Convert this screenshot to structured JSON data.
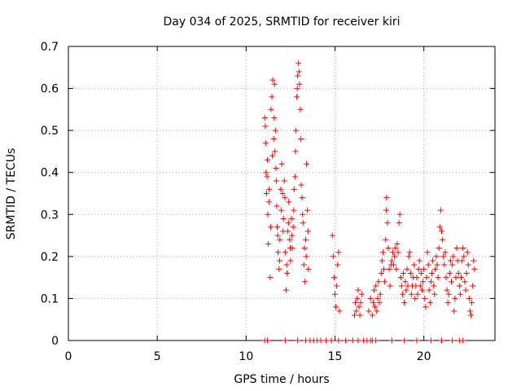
{
  "chart_data": {
    "type": "scatter",
    "title": "Day 034 of 2025, SRMTID for receiver kiri",
    "xlabel": "GPS time / hours",
    "ylabel": "SRMTID / TECUs",
    "xlim": [
      0,
      24
    ],
    "ylim": [
      0,
      0.7
    ],
    "xticks": [
      0,
      5,
      10,
      15,
      20
    ],
    "yticks": [
      0,
      0.1,
      0.2,
      0.3,
      0.4,
      0.5,
      0.6,
      0.7
    ],
    "xtick_labels": [
      "0",
      "5",
      "10",
      "15",
      "20"
    ],
    "ytick_labels": [
      "0",
      "0.1",
      "0.2",
      "0.3",
      "0.4",
      "0.5",
      "0.6",
      "0.7"
    ],
    "grid": true,
    "marker": "+",
    "series": [
      {
        "name": "SRMTID",
        "color": "#ff0000",
        "points": [
          [
            11.05,
            0.53
          ],
          [
            11.1,
            0.47
          ],
          [
            11.12,
            0.4
          ],
          [
            11.15,
            0.35
          ],
          [
            11.2,
            0.43
          ],
          [
            11.22,
            0.3
          ],
          [
            11.25,
            0.23
          ],
          [
            11.3,
            0.36
          ],
          [
            11.35,
            0.15
          ],
          [
            11.4,
            0.55
          ],
          [
            11.45,
            0.58
          ],
          [
            11.5,
            0.62
          ],
          [
            11.55,
            0.48
          ],
          [
            11.6,
            0.61
          ],
          [
            11.62,
            0.45
          ],
          [
            11.65,
            0.5
          ],
          [
            11.7,
            0.38
          ],
          [
            11.72,
            0.32
          ],
          [
            11.75,
            0.27
          ],
          [
            11.8,
            0.21
          ],
          [
            11.85,
            0.17
          ],
          [
            11.9,
            0.24
          ],
          [
            11.95,
            0.36
          ],
          [
            12.0,
            0.42
          ],
          [
            12.05,
            0.35
          ],
          [
            12.1,
            0.29
          ],
          [
            12.15,
            0.38
          ],
          [
            12.2,
            0.21
          ],
          [
            12.25,
            0.12
          ],
          [
            12.3,
            0.16
          ],
          [
            12.35,
            0.26
          ],
          [
            12.4,
            0.33
          ],
          [
            12.45,
            0.24
          ],
          [
            12.5,
            0.19
          ],
          [
            12.55,
            0.29
          ],
          [
            12.6,
            0.22
          ],
          [
            12.65,
            0.27
          ],
          [
            12.7,
            0.36
          ],
          [
            12.75,
            0.39
          ],
          [
            12.8,
            0.5
          ],
          [
            12.85,
            0.58
          ],
          [
            12.9,
            0.63
          ],
          [
            12.95,
            0.66
          ],
          [
            13.0,
            0.61
          ],
          [
            13.05,
            0.55
          ],
          [
            13.1,
            0.37
          ],
          [
            13.15,
            0.34
          ],
          [
            13.2,
            0.28
          ],
          [
            13.25,
            0.18
          ],
          [
            13.3,
            0.14
          ],
          [
            13.35,
            0.24
          ],
          [
            13.4,
            0.42
          ],
          [
            13.45,
            0.31
          ],
          [
            13.5,
            0.17
          ],
          [
            11.08,
            0.51
          ],
          [
            11.18,
            0.39
          ],
          [
            11.28,
            0.33
          ],
          [
            11.38,
            0.27
          ],
          [
            11.48,
            0.44
          ],
          [
            11.58,
            0.53
          ],
          [
            11.68,
            0.41
          ],
          [
            11.78,
            0.25
          ],
          [
            11.88,
            0.19
          ],
          [
            11.98,
            0.31
          ],
          [
            12.08,
            0.26
          ],
          [
            12.18,
            0.34
          ],
          [
            12.28,
            0.18
          ],
          [
            12.38,
            0.28
          ],
          [
            12.48,
            0.22
          ],
          [
            12.58,
            0.25
          ],
          [
            12.68,
            0.31
          ],
          [
            12.78,
            0.45
          ],
          [
            12.88,
            0.6
          ],
          [
            12.98,
            0.64
          ],
          [
            13.08,
            0.48
          ],
          [
            13.18,
            0.3
          ],
          [
            13.28,
            0.22
          ],
          [
            13.38,
            0.2
          ],
          [
            13.48,
            0.26
          ],
          [
            14.85,
            0.25
          ],
          [
            14.9,
            0.2
          ],
          [
            14.95,
            0.15
          ],
          [
            15.0,
            0.11
          ],
          [
            15.05,
            0.08
          ],
          [
            15.1,
            0.13
          ],
          [
            15.15,
            0.18
          ],
          [
            15.2,
            0.21
          ],
          [
            15.25,
            0.07
          ],
          [
            16.1,
            0.06
          ],
          [
            16.15,
            0.09
          ],
          [
            16.2,
            0.07
          ],
          [
            16.25,
            0.1
          ],
          [
            16.3,
            0.12
          ],
          [
            16.35,
            0.08
          ],
          [
            16.4,
            0.06
          ],
          [
            16.45,
            0.09
          ],
          [
            16.5,
            0.11
          ],
          [
            16.9,
            0.07
          ],
          [
            17.0,
            0.1
          ],
          [
            17.1,
            0.06
          ],
          [
            17.15,
            0.09
          ],
          [
            17.2,
            0.12
          ],
          [
            17.25,
            0.08
          ],
          [
            17.3,
            0.13
          ],
          [
            17.35,
            0.07
          ],
          [
            17.4,
            0.1
          ],
          [
            17.45,
            0.14
          ],
          [
            17.5,
            0.09
          ],
          [
            17.55,
            0.11
          ],
          [
            17.6,
            0.16
          ],
          [
            17.65,
            0.19
          ],
          [
            17.7,
            0.21
          ],
          [
            17.75,
            0.17
          ],
          [
            17.8,
            0.14
          ],
          [
            17.85,
            0.24
          ],
          [
            17.88,
            0.31
          ],
          [
            17.9,
            0.34
          ],
          [
            17.95,
            0.28
          ],
          [
            18.0,
            0.22
          ],
          [
            18.05,
            0.17
          ],
          [
            18.1,
            0.13
          ],
          [
            18.15,
            0.18
          ],
          [
            18.2,
            0.19
          ],
          [
            18.25,
            0.21
          ],
          [
            18.3,
            0.18
          ],
          [
            18.35,
            0.2
          ],
          [
            18.4,
            0.22
          ],
          [
            18.45,
            0.17
          ],
          [
            18.5,
            0.23
          ],
          [
            18.55,
            0.21
          ],
          [
            18.6,
            0.28
          ],
          [
            18.65,
            0.3
          ],
          [
            18.7,
            0.15
          ],
          [
            18.75,
            0.13
          ],
          [
            18.8,
            0.11
          ],
          [
            18.85,
            0.16
          ],
          [
            18.9,
            0.09
          ],
          [
            18.95,
            0.14
          ],
          [
            19.0,
            0.12
          ],
          [
            19.05,
            0.17
          ],
          [
            19.1,
            0.13
          ],
          [
            19.15,
            0.2
          ],
          [
            19.2,
            0.21
          ],
          [
            19.25,
            0.16
          ],
          [
            19.3,
            0.11
          ],
          [
            19.35,
            0.13
          ],
          [
            19.4,
            0.15
          ],
          [
            19.45,
            0.18
          ],
          [
            19.5,
            0.1
          ],
          [
            19.55,
            0.13
          ],
          [
            19.6,
            0.15
          ],
          [
            19.65,
            0.11
          ],
          [
            19.7,
            0.17
          ],
          [
            19.75,
            0.19
          ],
          [
            19.8,
            0.13
          ],
          [
            19.85,
            0.16
          ],
          [
            19.9,
            0.12
          ],
          [
            19.95,
            0.14
          ],
          [
            20.0,
            0.17
          ],
          [
            20.05,
            0.1
          ],
          [
            20.1,
            0.08
          ],
          [
            20.15,
            0.15
          ],
          [
            20.2,
            0.21
          ],
          [
            20.25,
            0.18
          ],
          [
            20.3,
            0.12
          ],
          [
            20.35,
            0.09
          ],
          [
            20.4,
            0.14
          ],
          [
            20.45,
            0.16
          ],
          [
            20.5,
            0.19
          ],
          [
            20.55,
            0.13
          ],
          [
            20.6,
            0.11
          ],
          [
            20.65,
            0.17
          ],
          [
            20.7,
            0.2
          ],
          [
            20.75,
            0.18
          ],
          [
            20.8,
            0.15
          ],
          [
            20.85,
            0.22
          ],
          [
            20.9,
            0.27
          ],
          [
            20.95,
            0.31
          ],
          [
            21.0,
            0.26
          ],
          [
            21.05,
            0.24
          ],
          [
            21.1,
            0.2
          ],
          [
            21.15,
            0.18
          ],
          [
            21.2,
            0.21
          ],
          [
            21.25,
            0.15
          ],
          [
            21.3,
            0.12
          ],
          [
            21.35,
            0.09
          ],
          [
            21.4,
            0.11
          ],
          [
            21.45,
            0.16
          ],
          [
            21.5,
            0.19
          ],
          [
            21.55,
            0.14
          ],
          [
            21.6,
            0.18
          ],
          [
            21.65,
            0.2
          ],
          [
            21.7,
            0.07
          ],
          [
            21.75,
            0.1
          ],
          [
            21.8,
            0.15
          ],
          [
            21.85,
            0.22
          ],
          [
            21.9,
            0.19
          ],
          [
            21.95,
            0.16
          ],
          [
            22.0,
            0.13
          ],
          [
            22.05,
            0.11
          ],
          [
            22.1,
            0.15
          ],
          [
            22.15,
            0.19
          ],
          [
            22.2,
            0.22
          ],
          [
            22.25,
            0.2
          ],
          [
            22.3,
            0.14
          ],
          [
            22.35,
            0.12
          ],
          [
            22.4,
            0.16
          ],
          [
            22.45,
            0.21
          ],
          [
            22.5,
            0.18
          ],
          [
            22.55,
            0.1
          ],
          [
            22.6,
            0.07
          ],
          [
            22.65,
            0.06
          ],
          [
            22.7,
            0.09
          ],
          [
            22.75,
            0.13
          ],
          [
            22.8,
            0.19
          ],
          [
            22.85,
            0.17
          ],
          [
            11.05,
            0
          ],
          [
            11.2,
            0
          ],
          [
            12.2,
            0
          ],
          [
            12.9,
            0
          ],
          [
            13.35,
            0
          ],
          [
            13.6,
            0
          ],
          [
            13.8,
            0
          ],
          [
            14.0,
            0
          ],
          [
            14.2,
            0
          ],
          [
            14.5,
            0
          ],
          [
            14.8,
            0
          ],
          [
            15.2,
            0
          ],
          [
            15.6,
            0
          ],
          [
            16.0,
            0
          ],
          [
            16.3,
            0
          ],
          [
            16.6,
            0
          ],
          [
            16.8,
            0
          ],
          [
            17.0,
            0
          ],
          [
            17.1,
            0
          ],
          [
            17.3,
            0
          ],
          [
            18.2,
            0
          ],
          [
            18.9,
            0
          ],
          [
            19.6,
            0
          ],
          [
            20.4,
            0
          ],
          [
            21.0,
            0
          ],
          [
            21.6,
            0
          ],
          [
            22.0,
            0
          ],
          [
            22.2,
            0
          ]
        ]
      }
    ]
  }
}
